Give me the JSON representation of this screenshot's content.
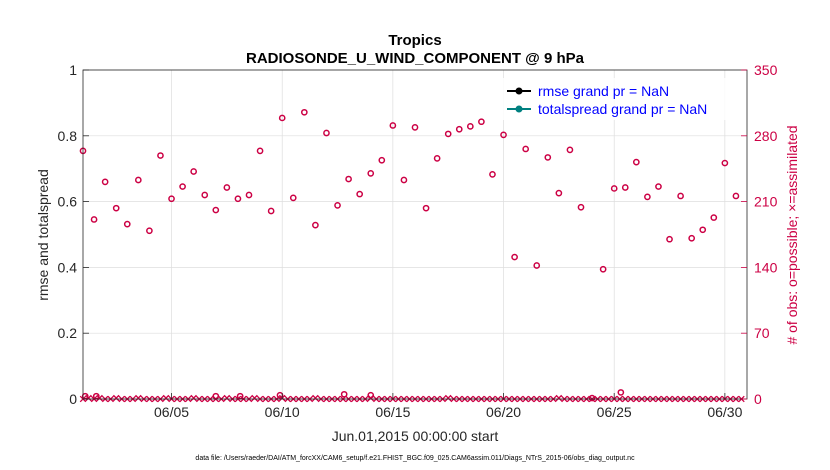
{
  "chart_data": {
    "type": "scatter",
    "title": "Tropics",
    "subtitle": "RADIOSONDE_U_WIND_COMPONENT @ 9 hPa",
    "xlabel": "Jun.01,2015 00:00:00 start",
    "ylabel_left": "rmse and totalspread",
    "ylabel_right": "# of obs: o=possible; ×=assimilated",
    "xlim": [
      1,
      31
    ],
    "ylim_left": [
      0,
      1
    ],
    "ylim_right": [
      0,
      350
    ],
    "x_ticks": [
      5,
      10,
      15,
      20,
      25,
      30
    ],
    "x_tick_labels": [
      "06/05",
      "06/10",
      "06/15",
      "06/20",
      "06/25",
      "06/30"
    ],
    "y_left_ticks": [
      0,
      0.2,
      0.4,
      0.6,
      0.8,
      1
    ],
    "y_left_tick_labels": [
      "0",
      "0.2",
      "0.4",
      "0.6",
      "0.8",
      "1"
    ],
    "y_right_ticks": [
      0,
      70,
      140,
      210,
      280,
      350
    ],
    "y_right_tick_labels": [
      "0",
      "70",
      "140",
      "210",
      "280",
      "350"
    ],
    "legend_position": "top-right",
    "legend": [
      {
        "label": "rmse grand pr = NaN",
        "color": "#000000"
      },
      {
        "label": "totalspread grand pr = NaN",
        "color": "#008080"
      }
    ],
    "footer": "data file: /Users/raeder/DAI/ATM_forcXX/CAM6_setup/f.e21.FHIST_BGC.f09_025.CAM6assim.011/Diags_NTrS_2015-06/obs_diag_output.nc",
    "series": [
      {
        "name": "possible",
        "marker": "circle",
        "axis": "right",
        "color": "#cc0044",
        "x": [
          1,
          1.5,
          2,
          2.5,
          3,
          3.5,
          4,
          4.5,
          5,
          5.5,
          6,
          6.5,
          7,
          7.5,
          8,
          8.5,
          9,
          9.5,
          10,
          10.5,
          11,
          11.5,
          12,
          12.5,
          13,
          13.5,
          14,
          14.5,
          15,
          15.5,
          16,
          16.5,
          17,
          17.5,
          18,
          18.5,
          19,
          19.5,
          20,
          20.5,
          21,
          21.5,
          22,
          22.5,
          23,
          23.5,
          24,
          24.5,
          25,
          25.5,
          26,
          26.5,
          27,
          27.5,
          28,
          28.5,
          29,
          29.5,
          30,
          30.5
        ],
        "values": [
          264,
          191,
          231,
          203,
          186,
          233,
          179,
          259,
          213,
          226,
          242,
          217,
          201,
          225,
          213,
          217,
          264,
          200,
          299,
          214,
          305,
          185,
          283,
          206,
          234,
          218,
          240,
          254,
          291,
          233,
          289,
          203,
          256,
          282,
          287,
          290,
          295,
          239,
          281,
          151,
          266,
          142,
          257,
          219,
          265,
          204,
          1,
          138,
          224,
          225,
          252,
          215,
          226,
          170,
          216,
          171,
          180,
          193,
          251,
          216
        ]
      },
      {
        "name": "assimilated",
        "marker": "x",
        "axis": "right",
        "color": "#cc0044",
        "x": [
          1,
          1.25,
          1.5,
          1.75,
          2,
          2.25,
          2.5,
          2.75,
          3,
          3.25,
          3.5,
          3.75,
          4,
          4.25,
          4.5,
          4.75,
          5,
          5.25,
          5.5,
          5.75,
          6,
          6.25,
          6.5,
          6.75,
          7,
          7.25,
          7.5,
          7.75,
          8,
          8.25,
          8.5,
          8.75,
          9,
          9.25,
          9.5,
          9.75,
          10,
          10.25,
          10.5,
          10.75,
          11,
          11.25,
          11.5,
          11.75,
          12,
          12.25,
          12.5,
          12.75,
          13,
          13.25,
          13.5,
          13.75,
          14,
          14.25,
          14.5,
          14.75,
          15,
          15.25,
          15.5,
          15.75,
          16,
          16.25,
          16.5,
          16.75,
          17,
          17.25,
          17.5,
          17.75,
          18,
          18.25,
          18.5,
          18.75,
          19,
          19.25,
          19.5,
          19.75,
          20,
          20.25,
          20.5,
          20.75,
          21,
          21.25,
          21.5,
          21.75,
          22,
          22.25,
          22.5,
          22.75,
          23,
          23.25,
          23.5,
          23.75,
          24,
          24.25,
          24.5,
          24.75,
          25,
          25.25,
          25.5,
          25.75,
          26,
          26.25,
          26.5,
          26.75,
          27,
          27.25,
          27.5,
          27.75,
          28,
          28.25,
          28.5,
          28.75,
          29,
          29.25,
          29.5,
          29.75,
          30,
          30.25,
          30.5,
          30.75
        ],
        "values": [
          0,
          1,
          0,
          1,
          0,
          0,
          1,
          0,
          0,
          0,
          1,
          0,
          0,
          0,
          0,
          1,
          0,
          0,
          0,
          0,
          1,
          0,
          0,
          0,
          0,
          0,
          1,
          0,
          0,
          0,
          0,
          1,
          0,
          0,
          0,
          0,
          1,
          0,
          0,
          0,
          0,
          0,
          1,
          0,
          0,
          0,
          0,
          0,
          0,
          0,
          0,
          0,
          1,
          0,
          0,
          0,
          0,
          0,
          0,
          0,
          0,
          0,
          0,
          0,
          0,
          0,
          1,
          0,
          0,
          0,
          0,
          0,
          0,
          0,
          0,
          0,
          0,
          0,
          0,
          0,
          0,
          0,
          0,
          0,
          0,
          0,
          1,
          0,
          0,
          0,
          0,
          0,
          0,
          0,
          0,
          0,
          0,
          0,
          0,
          0,
          0,
          0,
          0,
          0,
          0,
          0,
          0,
          0,
          0,
          0,
          0,
          0,
          0,
          0,
          0,
          0,
          0,
          0,
          0,
          0
        ]
      },
      {
        "name": "possible (near zero)",
        "marker": "circle",
        "axis": "right",
        "color": "#cc0044",
        "x": [
          1.1,
          1.6,
          7,
          8.1,
          9.9,
          12.8,
          14,
          25.3
        ],
        "values": [
          3,
          3,
          3,
          3,
          4,
          5,
          4,
          7
        ]
      }
    ]
  }
}
